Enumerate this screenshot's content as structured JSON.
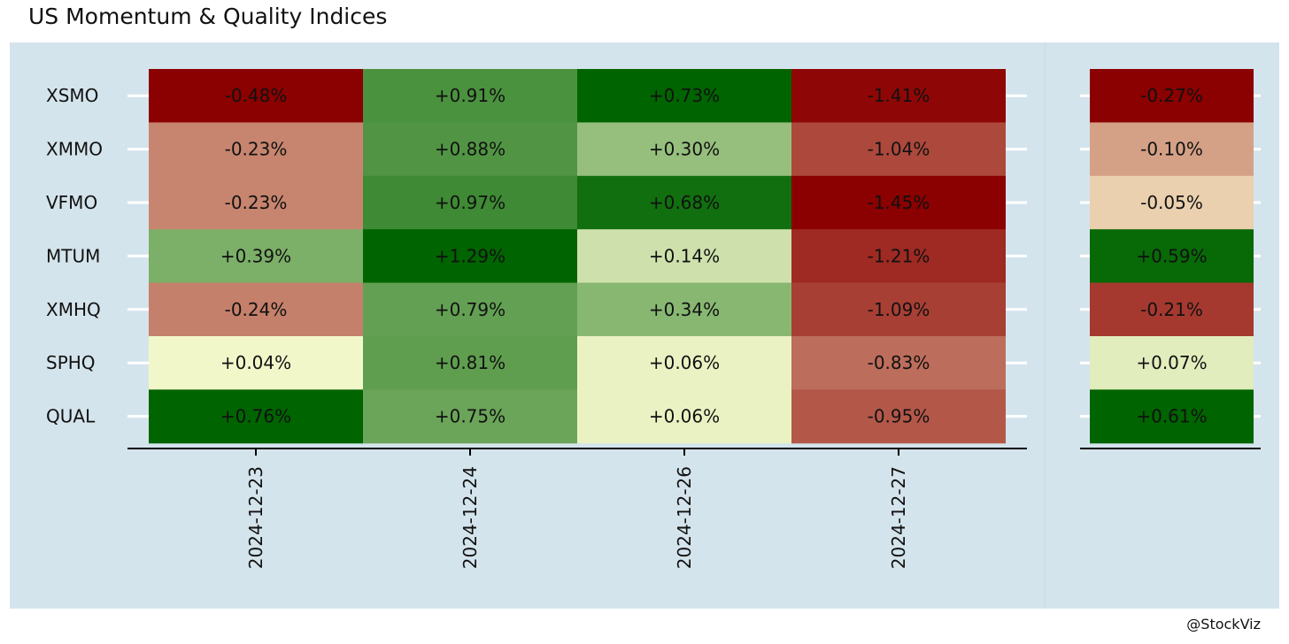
{
  "title": "US Momentum & Quality Indices",
  "credit": "@StockViz",
  "colors": {
    "panel_bg": "#d4e4ec",
    "strong_negative": "#8b0000",
    "neutral": "#ffffd5",
    "strong_positive": "#006400",
    "axis_line": "#000000",
    "tick": "#ffffff"
  },
  "chart_data": [
    {
      "type": "heatmap",
      "title": "US Momentum & Quality Indices",
      "x": [
        "2024-12-23",
        "2024-12-24",
        "2024-12-26",
        "2024-12-27"
      ],
      "y": [
        "XSMO",
        "XMMO",
        "VFMO",
        "MTUM",
        "XMHQ",
        "SPHQ",
        "QUAL"
      ],
      "values": [
        [
          -0.48,
          0.91,
          0.73,
          -1.41
        ],
        [
          -0.23,
          0.88,
          0.3,
          -1.04
        ],
        [
          -0.23,
          0.97,
          0.68,
          -1.45
        ],
        [
          0.39,
          1.29,
          0.14,
          -1.21
        ],
        [
          -0.24,
          0.79,
          0.34,
          -1.09
        ],
        [
          0.04,
          0.81,
          0.06,
          -0.83
        ],
        [
          0.76,
          0.75,
          0.06,
          -0.95
        ]
      ],
      "labels": [
        [
          "-0.48%",
          "+0.91%",
          "+0.73%",
          "-1.41%"
        ],
        [
          "-0.23%",
          "+0.88%",
          "+0.30%",
          "-1.04%"
        ],
        [
          "-0.23%",
          "+0.97%",
          "+0.68%",
          "-1.45%"
        ],
        [
          "+0.39%",
          "+1.29%",
          "+0.14%",
          "-1.21%"
        ],
        [
          "-0.24%",
          "+0.79%",
          "+0.34%",
          "-1.09%"
        ],
        [
          "+0.04%",
          "+0.81%",
          "+0.06%",
          "-0.83%"
        ],
        [
          "+0.76%",
          "+0.75%",
          "+0.06%",
          "-0.95%"
        ]
      ],
      "color_scale": [
        "#8b0000",
        "#ffffd5",
        "#006400"
      ],
      "color_scale_range": "per column"
    },
    {
      "type": "heatmap",
      "y": [
        "XSMO",
        "XMMO",
        "VFMO",
        "MTUM",
        "XMHQ",
        "SPHQ",
        "QUAL"
      ],
      "values": [
        -0.27,
        -0.1,
        -0.05,
        0.59,
        -0.21,
        0.07,
        0.61
      ],
      "labels": [
        "-0.27%",
        "-0.10%",
        "-0.05%",
        "+0.59%",
        "-0.21%",
        "+0.07%",
        "+0.61%"
      ],
      "color_scale": [
        "#8b0000",
        "#ffffd5",
        "#006400"
      ]
    }
  ]
}
